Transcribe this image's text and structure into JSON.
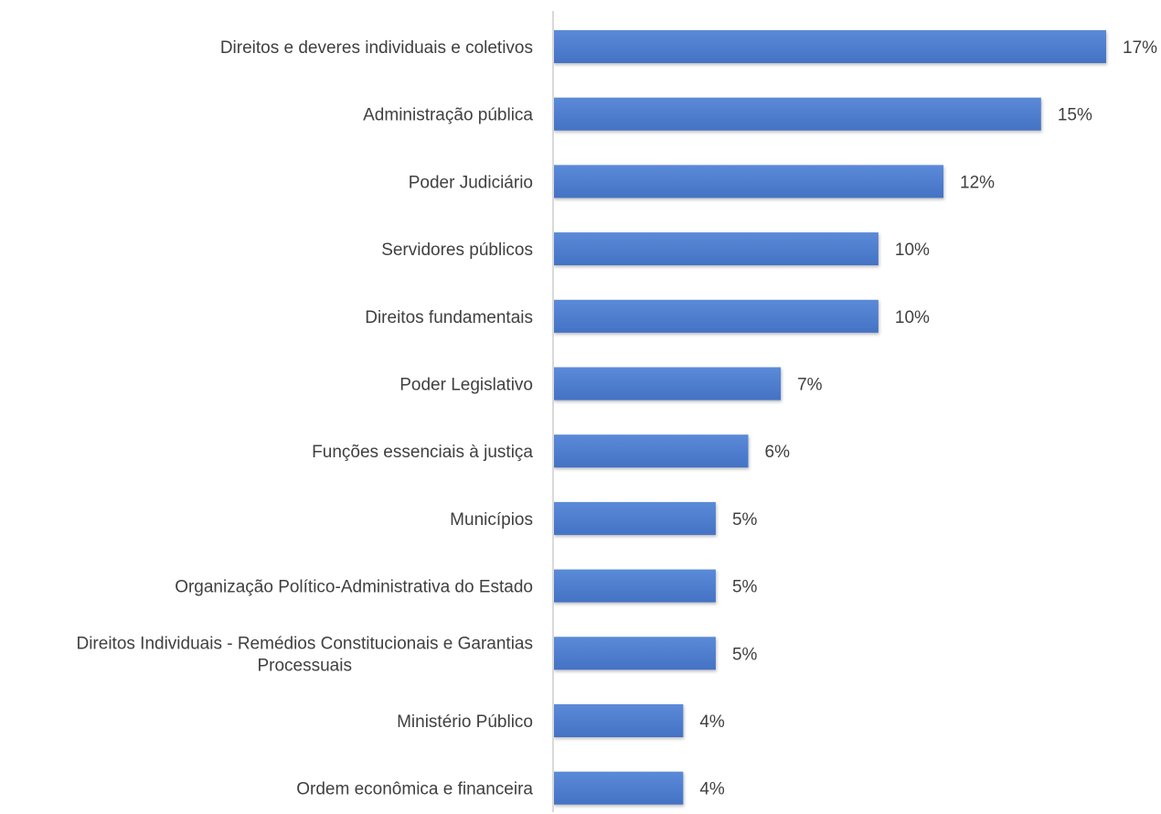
{
  "chart_data": {
    "type": "bar",
    "orientation": "horizontal",
    "categories": [
      "Direitos e deveres individuais e coletivos",
      "Administração pública",
      "Poder Judiciário",
      "Servidores públicos",
      "Direitos fundamentais",
      "Poder Legislativo",
      "Funções essenciais à justiça",
      "Municípios",
      "Organização Político-Administrativa do Estado",
      "Direitos Individuais - Remédios Constitucionais e Garantias Processuais",
      "Ministério Público",
      "Ordem econômica e financeira"
    ],
    "category_lines": [
      [
        "Direitos e deveres individuais e coletivos"
      ],
      [
        "Administração pública"
      ],
      [
        "Poder Judiciário"
      ],
      [
        "Servidores públicos"
      ],
      [
        "Direitos fundamentais"
      ],
      [
        "Poder Legislativo"
      ],
      [
        "Funções essenciais à justiça"
      ],
      [
        "Municípios"
      ],
      [
        "Organização Político-Administrativa do Estado"
      ],
      [
        "Direitos Individuais - Remédios Constitucionais e Garantias",
        "Processuais"
      ],
      [
        "Ministério Público"
      ],
      [
        "Ordem econômica e financeira"
      ]
    ],
    "values": [
      17,
      15,
      12,
      10,
      10,
      7,
      6,
      5,
      5,
      5,
      4,
      4
    ],
    "value_labels": [
      "17%",
      "15%",
      "12%",
      "10%",
      "10%",
      "7%",
      "6%",
      "5%",
      "5%",
      "5%",
      "4%",
      "4%"
    ],
    "unit": "%",
    "xlim": [
      0,
      17
    ],
    "title": "",
    "xlabel": "",
    "ylabel": "",
    "grid": false,
    "legend": "none",
    "bar_color": "#4472C4",
    "bar_color_light": "#5b8ad8",
    "axis_color": "#d9d9d9",
    "text_color": "#404040"
  }
}
